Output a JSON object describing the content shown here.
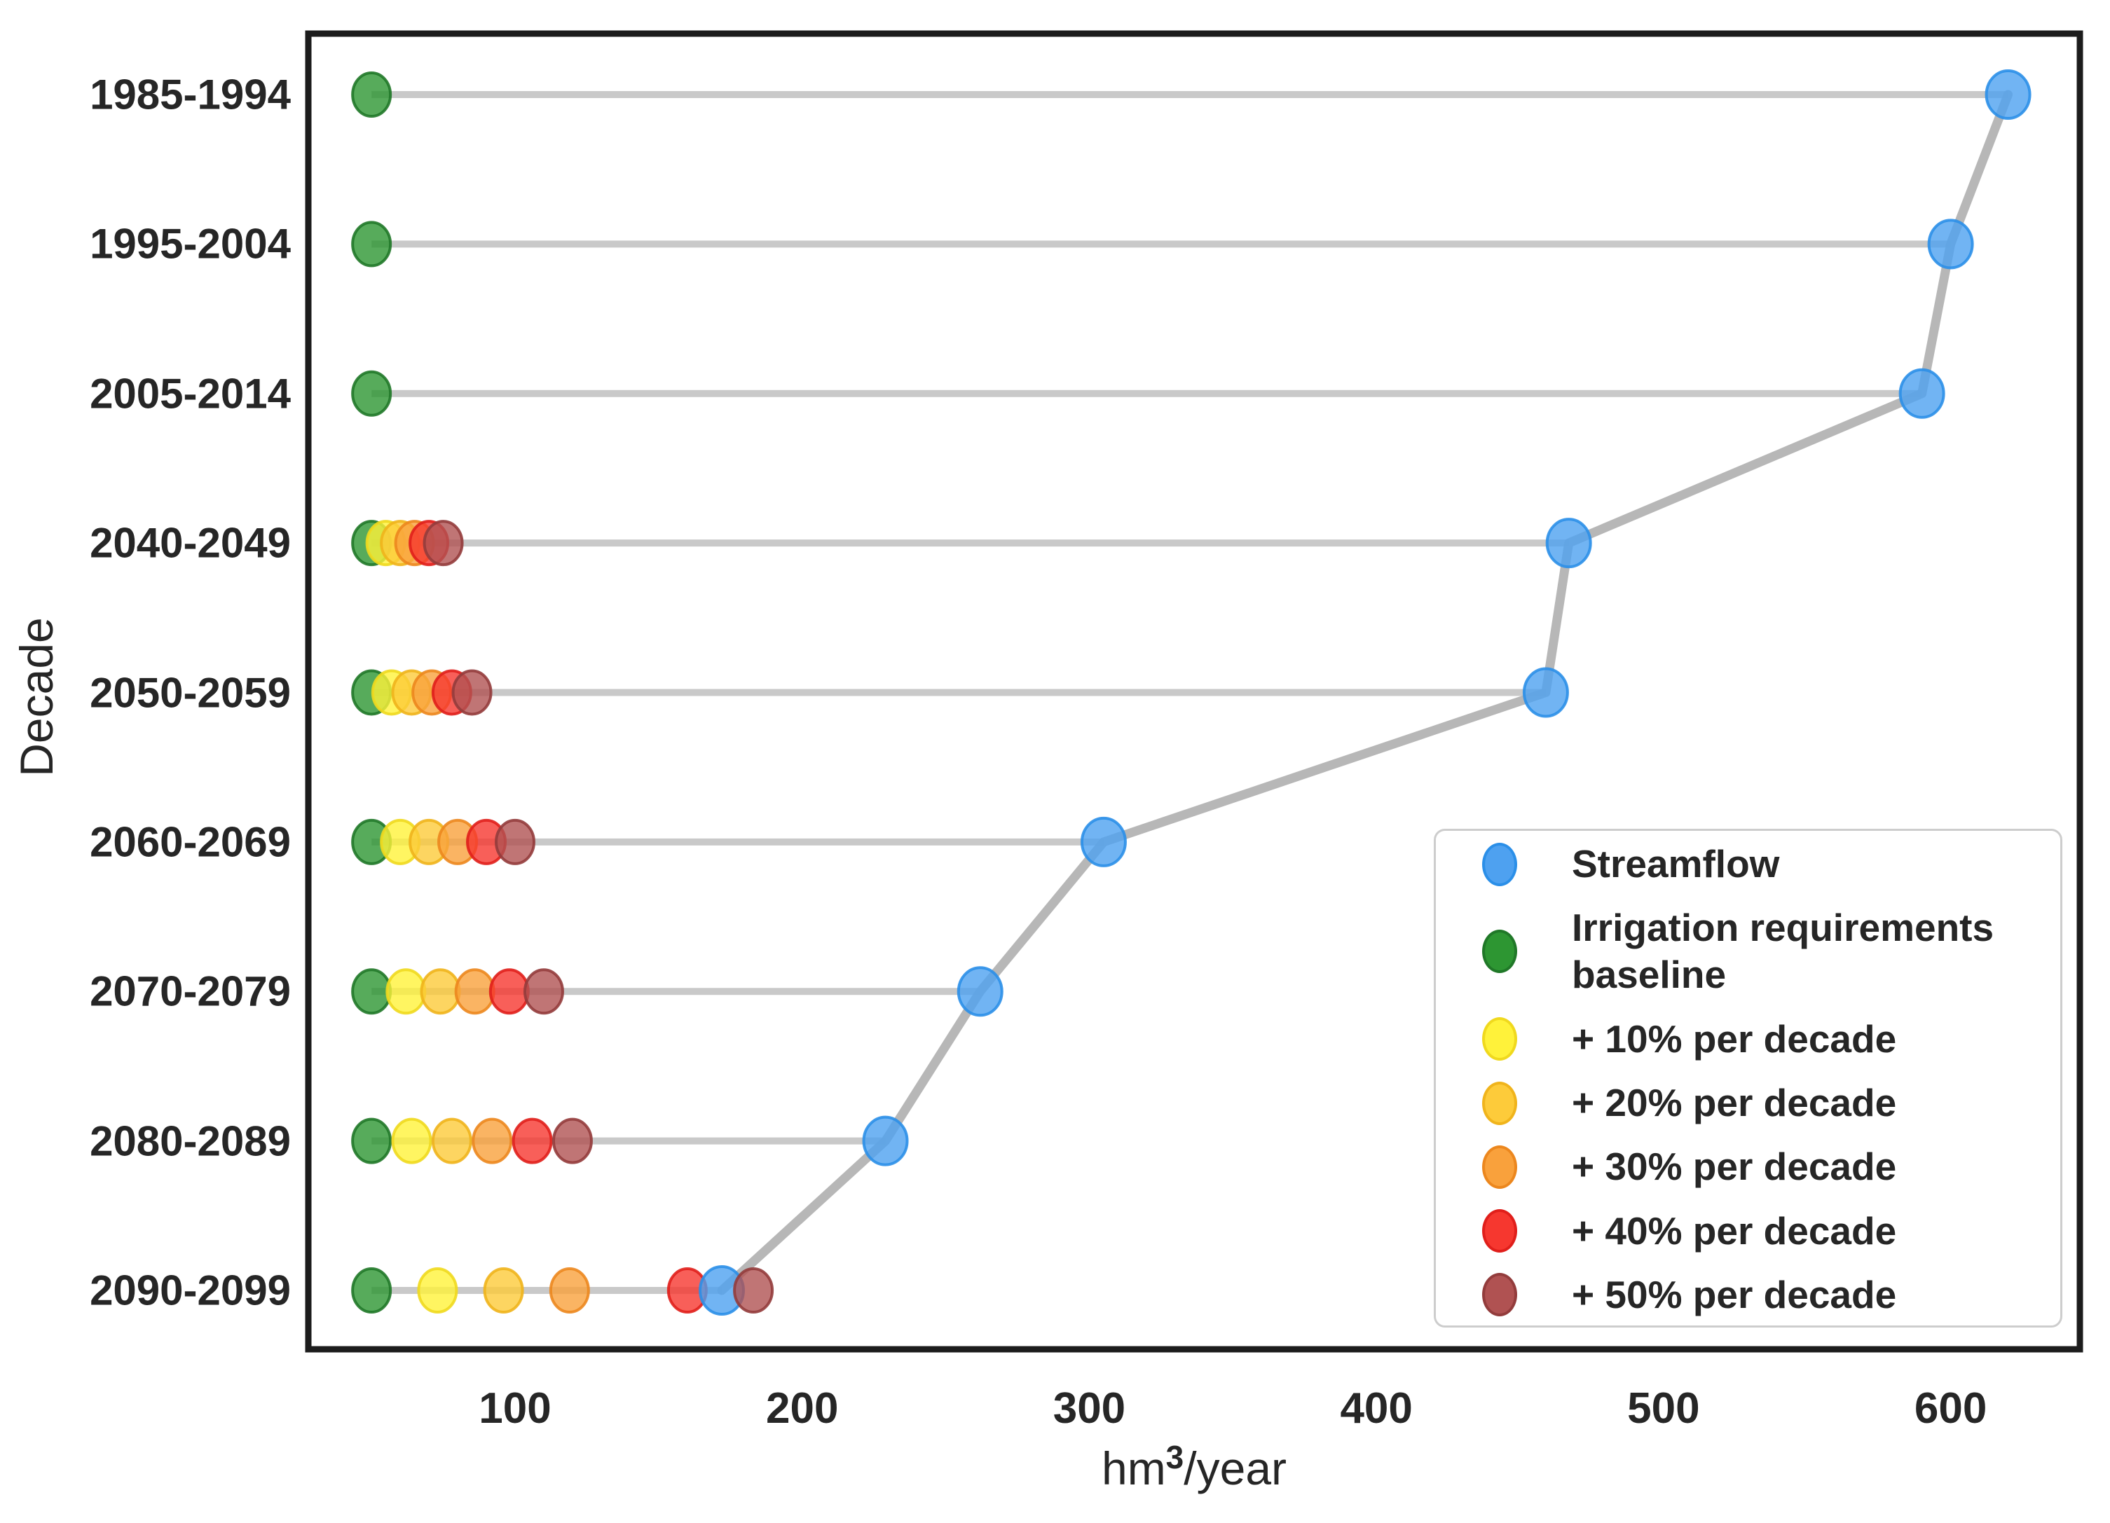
{
  "chart_data": {
    "type": "scatter",
    "subtype": "dumbbell-dot-plot",
    "title": "",
    "xlabel": {
      "prefix": "hm",
      "sup": "3",
      "suffix": "/year"
    },
    "ylabel": "Decade",
    "x_ticks": [
      100,
      200,
      300,
      400,
      500,
      600
    ],
    "xlim": [
      28,
      645
    ],
    "grid": false,
    "categories": [
      "1985-1994",
      "1995-2004",
      "2005-2014",
      "2040-2049",
      "2050-2059",
      "2060-2069",
      "2070-2079",
      "2080-2089",
      "2090-2099"
    ],
    "series": [
      {
        "key": "streamflow",
        "name": "Streamflow",
        "color": "#4EA1F0",
        "edge": "#2B8FE8",
        "values": [
          620,
          600,
          590,
          467,
          459,
          305,
          262,
          229,
          172
        ]
      },
      {
        "key": "baseline",
        "name": "Irrigation requirements baseline",
        "color": "#2D9632",
        "edge": "#207828",
        "values": [
          50,
          50,
          50,
          50,
          50,
          50,
          50,
          50,
          50
        ]
      },
      {
        "key": "plus10",
        "name": "+ 10% per decade",
        "color": "#FFF23A",
        "edge": "#F0D91E",
        "values": [
          null,
          null,
          null,
          55,
          57,
          60,
          62,
          64,
          73
        ]
      },
      {
        "key": "plus20",
        "name": "+ 20% per decade",
        "color": "#FDCB3A",
        "edge": "#F0B41C",
        "values": [
          null,
          null,
          null,
          60,
          64,
          70,
          74,
          78,
          96
        ]
      },
      {
        "key": "plus30",
        "name": "+ 30% per decade",
        "color": "#F9A13C",
        "edge": "#EC871E",
        "values": [
          null,
          null,
          null,
          65,
          71,
          80,
          86,
          92,
          119
        ]
      },
      {
        "key": "plus40",
        "name": "+ 40% per decade",
        "color": "#F6372F",
        "edge": "#E01F1B",
        "values": [
          null,
          null,
          null,
          70,
          78,
          90,
          98,
          106,
          160
        ]
      },
      {
        "key": "plus50",
        "name": "+ 50% per decade",
        "color": "#B05252",
        "edge": "#933C3C",
        "values": [
          null,
          null,
          null,
          75,
          85,
          100,
          110,
          120,
          183
        ]
      }
    ],
    "connector_color": "#c9c9c9",
    "trend_color": "#b3b3b3",
    "frame_color": "#1c1c1c",
    "legend": {
      "position": "lower right",
      "entries": [
        {
          "label": "Streamflow",
          "color": "#4EA1F0",
          "edge": "#2B8FE8"
        },
        {
          "label": "Irrigation requirements baseline",
          "color": "#2D9632",
          "edge": "#207828"
        },
        {
          "label": "+ 10% per decade",
          "color": "#FFF23A",
          "edge": "#F0D91E"
        },
        {
          "label": "+ 20% per decade",
          "color": "#FDCB3A",
          "edge": "#F0B41C"
        },
        {
          "label": "+ 30% per decade",
          "color": "#F9A13C",
          "edge": "#EC871E"
        },
        {
          "label": "+ 40% per decade",
          "color": "#F6372F",
          "edge": "#E01F1B"
        },
        {
          "label": "+ 50% per decade",
          "color": "#B05252",
          "edge": "#933C3C"
        }
      ]
    }
  }
}
